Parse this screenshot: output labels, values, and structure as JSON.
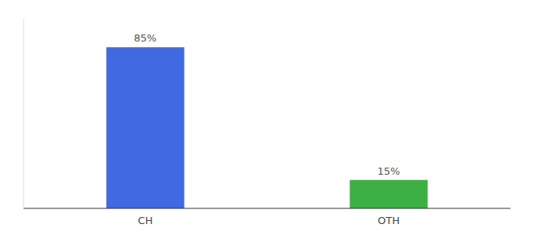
{
  "chart_data": {
    "type": "bar",
    "categories": [
      "CH",
      "OTH"
    ],
    "values": [
      85,
      15
    ],
    "value_labels": [
      "85%",
      "15%"
    ],
    "colors": [
      "#4169e1",
      "#3cb043"
    ],
    "ylim": [
      0,
      100
    ],
    "data_labels": true,
    "tick_labels": "x"
  }
}
